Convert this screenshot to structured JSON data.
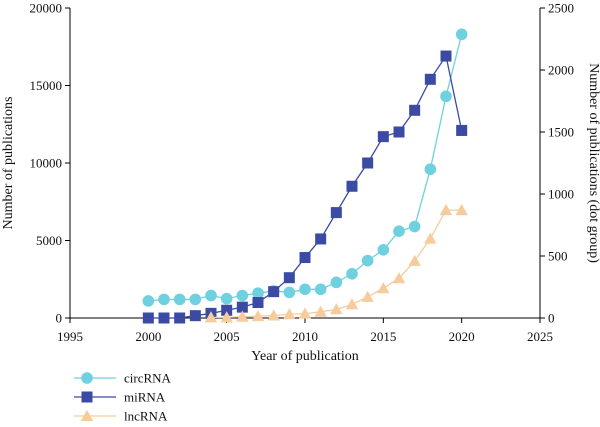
{
  "chart_data": {
    "type": "line",
    "xlabel": "Year of publication",
    "ylabel_left": "Number of publications",
    "ylabel_right": "Number of publications (dot group)",
    "xlim": [
      1995,
      2025
    ],
    "ylim_left": [
      0,
      20000
    ],
    "ylim_right": [
      0,
      2500
    ],
    "x_ticks": [
      "1995",
      "2000",
      "2005",
      "2010",
      "2015",
      "2020",
      "2025"
    ],
    "y_left_ticks": [
      "0",
      "5000",
      "10000",
      "15000",
      "20000"
    ],
    "y_right_ticks": [
      "0",
      "500",
      "1000",
      "1500",
      "2000",
      "2500"
    ],
    "grid": false,
    "legend_position": "bottom-left",
    "series": [
      {
        "name": "circRNA",
        "axis": "left",
        "marker": "circle",
        "color": "#6fd0df",
        "x": [
          2000,
          2001,
          2002,
          2003,
          2004,
          2005,
          2006,
          2007,
          2008,
          2009,
          2010,
          2011,
          2012,
          2013,
          2014,
          2015,
          2016,
          2017,
          2018,
          2019,
          2020
        ],
        "values": [
          1100,
          1200,
          1200,
          1200,
          1450,
          1250,
          1450,
          1600,
          1750,
          1650,
          1850,
          1850,
          2300,
          2850,
          3700,
          4400,
          5600,
          5900,
          9600,
          14300,
          18300
        ]
      },
      {
        "name": "miRNA",
        "axis": "left",
        "marker": "square",
        "color": "#3b4aa3",
        "x": [
          2000,
          2001,
          2002,
          2003,
          2004,
          2005,
          2006,
          2007,
          2008,
          2009,
          2010,
          2011,
          2012,
          2013,
          2014,
          2015,
          2016,
          2017,
          2018,
          2019,
          2020
        ],
        "values": [
          0,
          0,
          0,
          150,
          300,
          500,
          700,
          1000,
          1700,
          2600,
          3900,
          5100,
          6800,
          8500,
          10000,
          11700,
          12000,
          13400,
          15400,
          16900,
          12100
        ]
      },
      {
        "name": "lncRNA",
        "axis": "right",
        "marker": "triangle",
        "color": "#f6cc9c",
        "x": [
          2004,
          2005,
          2006,
          2007,
          2008,
          2009,
          2010,
          2011,
          2012,
          2013,
          2014,
          2015,
          2016,
          2017,
          2018,
          2019,
          2020
        ],
        "values": [
          5,
          5,
          10,
          15,
          20,
          30,
          35,
          50,
          70,
          110,
          170,
          240,
          320,
          460,
          640,
          870,
          870
        ]
      }
    ],
    "legend": [
      "circRNA",
      "miRNA",
      "lncRNA"
    ]
  }
}
